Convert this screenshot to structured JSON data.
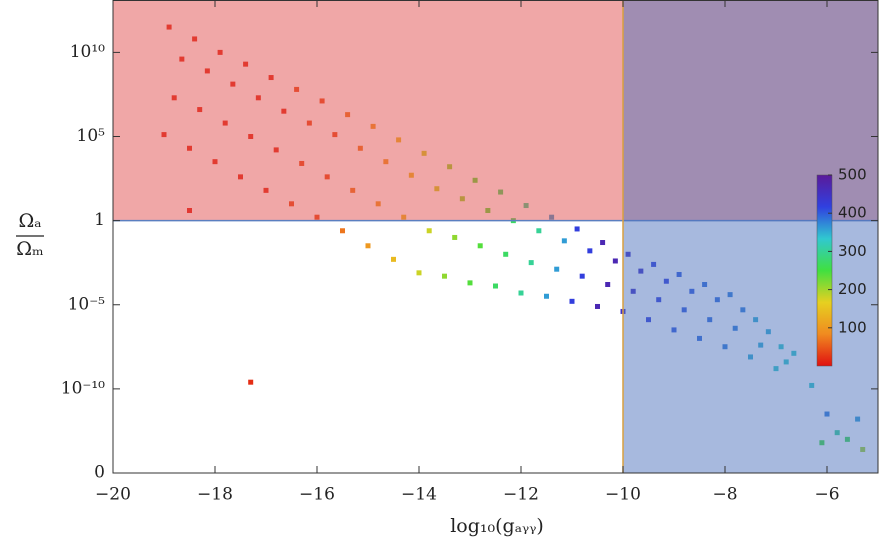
{
  "chart_data": {
    "type": "scatter",
    "xlabel": "log₁₀(gₐᵧᵧ)",
    "ylabel": {
      "numerator": "Ωₐ",
      "denominator": "Ωₘ"
    },
    "xlim": [
      -20,
      -5
    ],
    "xticks": [
      {
        "value": -20,
        "label": "−20"
      },
      {
        "value": -18,
        "label": "−18"
      },
      {
        "value": -16,
        "label": "−16"
      },
      {
        "value": -14,
        "label": "−14"
      },
      {
        "value": -12,
        "label": "−12"
      },
      {
        "value": -10,
        "label": "−10"
      },
      {
        "value": -8,
        "label": "−8"
      },
      {
        "value": -6,
        "label": "−6"
      }
    ],
    "ylim": [
      1e-15,
      13000000000000.0
    ],
    "log_y": true,
    "yticks": [
      {
        "value": 1e-15,
        "label": "0"
      },
      {
        "value": 1e-10,
        "label": "10⁻¹⁰"
      },
      {
        "value": 1e-05,
        "label": "10⁻⁵"
      },
      1,
      {
        "value": 100000.0,
        "label": "10⁵"
      },
      {
        "value": 10000000000.0,
        "label": "10¹⁰"
      }
    ],
    "regions": [
      {
        "y_min": 1,
        "fill": "rgba(225,80,80,0.5)",
        "edge": "#5b7fc0"
      },
      {
        "x_min": -10,
        "fill": "rgba(80,115,190,0.5)",
        "edge": "#d9a040"
      }
    ],
    "colorbar": {
      "clim": [
        0,
        500
      ],
      "ticks": [
        100,
        200,
        300,
        400,
        500
      ],
      "colormap": [
        "#e01010",
        "#f08a20",
        "#e6d020",
        "#40e040",
        "#30c8d0",
        "#3040e0",
        "#5a1a9a"
      ]
    },
    "points": {
      "x": [
        -19,
        -18.8,
        -18.65,
        -18.9,
        -18.5,
        -18.3,
        -18.15,
        -18.4,
        -18,
        -17.8,
        -17.65,
        -17.9,
        -17.5,
        -17.3,
        -17.15,
        -17.4,
        -17,
        -16.8,
        -16.65,
        -16.9,
        -16.5,
        -16.3,
        -16.15,
        -16.4,
        -16,
        -15.8,
        -15.65,
        -15.9,
        -15.5,
        -15.3,
        -15.15,
        -15.4,
        -15,
        -14.8,
        -14.65,
        -14.9,
        -14.5,
        -14.3,
        -14.15,
        -14.4,
        -14,
        -13.8,
        -13.65,
        -13.9,
        -13.5,
        -13.3,
        -13.15,
        -13.4,
        -13,
        -12.8,
        -12.65,
        -12.9,
        -12.5,
        -12.3,
        -12.15,
        -12.4,
        -12,
        -11.8,
        -11.65,
        -11.9,
        -11.5,
        -11.3,
        -11.15,
        -11.4,
        -11,
        -10.8,
        -10.65,
        -10.9,
        -10.5,
        -10.3,
        -10.15,
        -10.4,
        -10,
        -9.8,
        -9.65,
        -9.9,
        -9.5,
        -9.3,
        -9.15,
        -9.4,
        -9,
        -8.8,
        -8.65,
        -8.9,
        -8.5,
        -8.3,
        -8.15,
        -8.4,
        -8,
        -7.8,
        -7.65,
        -7.9,
        -7.5,
        -7.3,
        -7.15,
        -7.4,
        -7,
        -6.8,
        -6.65,
        -6.9,
        -6.3,
        -6.0,
        -5.8,
        -5.6,
        -5.4,
        -6.1,
        -5.3,
        -17.3,
        -18.5
      ],
      "y": [
        130000.0,
        20000000.0,
        4000000000.0,
        320000000000.0,
        20000.0,
        4000000.0,
        790000000.0,
        63000000000.0,
        3200,
        630000.0,
        130000000.0,
        10000000000.0,
        400,
        100000.0,
        20000000.0,
        2000000000.0,
        63,
        16000.0,
        3200000.0,
        320000000.0,
        10,
        2500,
        630000.0,
        63000000.0,
        1.6,
        400,
        130000.0,
        13000000.0,
        0.25,
        63,
        20000.0,
        2000000.0,
        0.032,
        10,
        3200,
        400000.0,
        0.005,
        1.6,
        500,
        63000.0,
        0.00079,
        0.25,
        79,
        10000.0,
        0.0005,
        0.1,
        20,
        1600,
        0.0002,
        0.032,
        4,
        250,
        0.00013,
        0.01,
        1,
        50,
        5e-05,
        0.0032,
        0.25,
        7.9,
        3.2e-05,
        0.0013,
        0.063,
        1.6,
        1.6e-05,
        0.0005,
        0.016,
        0.32,
        7.9e-06,
        0.00016,
        0.004,
        0.05,
        4e-06,
        6.3e-05,
        0.001,
        0.01,
        1.3e-06,
        2e-05,
        0.00025,
        0.0025,
        3.2e-07,
        5e-06,
        6.3e-05,
        0.00063,
        1e-07,
        1.3e-06,
        2e-05,
        0.00016,
        3.2e-08,
        4e-07,
        5e-06,
        4e-05,
        7.9e-09,
        4e-08,
        2.5e-07,
        1.3e-06,
        1.6e-09,
        4e-09,
        1.3e-08,
        3.2e-08,
        1.6e-10,
        3.2e-12,
        2.5e-13,
        1e-13,
        1.6e-12,
        6.3e-14,
        2.5e-14,
        2.5e-10,
        4
      ],
      "c": [
        15,
        15,
        15,
        15,
        15,
        15,
        15,
        15,
        15,
        15,
        15,
        15,
        15,
        15,
        15,
        15,
        15,
        15,
        15,
        15,
        40,
        40,
        40,
        40,
        40,
        40,
        40,
        40,
        70,
        70,
        70,
        70,
        100,
        100,
        100,
        100,
        140,
        140,
        140,
        140,
        180,
        180,
        180,
        180,
        210,
        210,
        210,
        210,
        240,
        240,
        240,
        240,
        270,
        270,
        270,
        270,
        300,
        300,
        300,
        300,
        360,
        360,
        360,
        360,
        420,
        420,
        420,
        420,
        470,
        470,
        470,
        470,
        450,
        450,
        450,
        450,
        420,
        420,
        420,
        420,
        400,
        400,
        400,
        400,
        390,
        390,
        390,
        390,
        380,
        380,
        380,
        380,
        350,
        350,
        350,
        350,
        330,
        330,
        330,
        330,
        330,
        380,
        300,
        260,
        360,
        250,
        200,
        20,
        10
      ]
    }
  }
}
